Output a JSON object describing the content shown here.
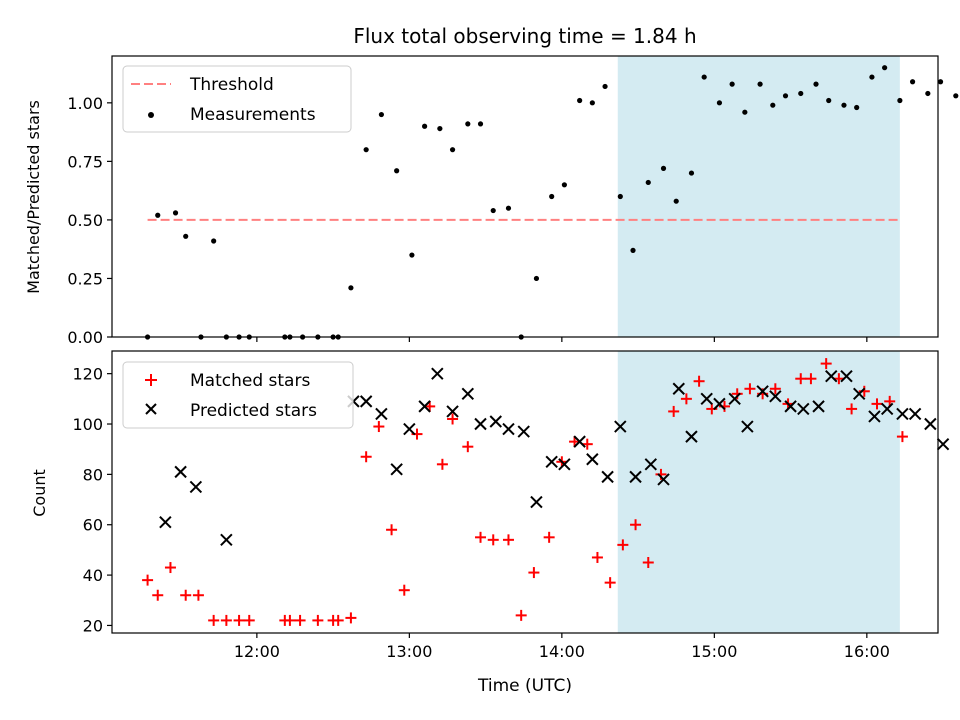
{
  "figure": {
    "title": "Flux total observing time = 1.84 h",
    "xlabel": "Time (UTC)",
    "xticks": [
      "12:00",
      "13:00",
      "14:00",
      "15:00",
      "16:00"
    ]
  },
  "chart_data": [
    {
      "type": "scatter",
      "ylabel": "Matched/Predicted stars",
      "xlim": [
        "11:03",
        "16:28"
      ],
      "ylim": [
        0,
        1.2
      ],
      "yticks": [
        "0.00",
        "0.25",
        "0.50",
        "0.75",
        "1.00"
      ],
      "shaded_interval": [
        "14:22",
        "16:13"
      ],
      "grid": false,
      "legend_position": "top-left",
      "legend": [
        {
          "key": "threshold",
          "label": "Threshold",
          "color": "#ff8080",
          "style": "dashed-line"
        },
        {
          "key": "measurements",
          "label": "Measurements",
          "color": "#000000",
          "style": "dot"
        }
      ],
      "threshold": {
        "value": 0.5,
        "x": [
          "11:17",
          "16:13"
        ]
      },
      "series": [
        {
          "name": "Measurements",
          "points": [
            [
              "11:17",
              0.0
            ],
            [
              "11:21",
              0.52
            ],
            [
              "11:28",
              0.53
            ],
            [
              "11:32",
              0.43
            ],
            [
              "11:38",
              0.0
            ],
            [
              "11:43",
              0.41
            ],
            [
              "11:48",
              0.0
            ],
            [
              "11:53",
              0.0
            ],
            [
              "11:57",
              0.0
            ],
            [
              "12:11",
              0.0
            ],
            [
              "12:13",
              0.0
            ],
            [
              "12:18",
              0.0
            ],
            [
              "12:24",
              0.0
            ],
            [
              "12:30",
              0.0
            ],
            [
              "12:32",
              0.0
            ],
            [
              "12:37",
              0.21
            ],
            [
              "12:43",
              0.8
            ],
            [
              "12:49",
              0.95
            ],
            [
              "12:55",
              0.71
            ],
            [
              "13:01",
              0.35
            ],
            [
              "13:06",
              0.9
            ],
            [
              "13:12",
              0.89
            ],
            [
              "13:17",
              0.8
            ],
            [
              "13:23",
              0.91
            ],
            [
              "13:28",
              0.91
            ],
            [
              "13:33",
              0.54
            ],
            [
              "13:39",
              0.55
            ],
            [
              "13:44",
              0.0
            ],
            [
              "13:50",
              0.25
            ],
            [
              "13:56",
              0.6
            ],
            [
              "14:01",
              0.65
            ],
            [
              "14:07",
              1.01
            ],
            [
              "14:12",
              1.0
            ],
            [
              "14:17",
              1.07
            ],
            [
              "14:23",
              0.6
            ],
            [
              "14:28",
              0.37
            ],
            [
              "14:34",
              0.66
            ],
            [
              "14:40",
              0.72
            ],
            [
              "14:45",
              0.58
            ],
            [
              "14:51",
              0.7
            ],
            [
              "14:56",
              1.11
            ],
            [
              "15:02",
              1.0
            ],
            [
              "15:07",
              1.08
            ],
            [
              "15:12",
              0.96
            ],
            [
              "15:18",
              1.08
            ],
            [
              "15:23",
              0.99
            ],
            [
              "15:28",
              1.03
            ],
            [
              "15:34",
              1.04
            ],
            [
              "15:40",
              1.08
            ],
            [
              "15:45",
              1.01
            ],
            [
              "15:51",
              0.99
            ],
            [
              "15:56",
              0.98
            ],
            [
              "16:02",
              1.11
            ],
            [
              "16:07",
              1.15
            ],
            [
              "16:13",
              1.01
            ],
            [
              "16:18",
              1.09
            ],
            [
              "16:24",
              1.04
            ],
            [
              "16:29",
              1.09
            ],
            [
              "16:35",
              1.03
            ]
          ]
        }
      ]
    },
    {
      "type": "scatter",
      "ylabel": "Count",
      "xlim": [
        "11:03",
        "16:28"
      ],
      "ylim": [
        17,
        129
      ],
      "yticks": [
        "20",
        "40",
        "60",
        "80",
        "100",
        "120"
      ],
      "shaded_interval": [
        "14:22",
        "16:13"
      ],
      "grid": false,
      "legend_position": "top-left",
      "legend": [
        {
          "key": "matched",
          "label": "Matched stars",
          "color": "#ff0000",
          "style": "plus"
        },
        {
          "key": "predicted",
          "label": "Predicted stars",
          "color": "#000000",
          "style": "x"
        }
      ],
      "series": [
        {
          "name": "Matched stars",
          "points": [
            [
              "11:17",
              38
            ],
            [
              "11:21",
              32
            ],
            [
              "11:26",
              43
            ],
            [
              "11:32",
              32
            ],
            [
              "11:37",
              32
            ],
            [
              "11:43",
              22
            ],
            [
              "11:48",
              22
            ],
            [
              "11:53",
              22
            ],
            [
              "11:57",
              22
            ],
            [
              "12:11",
              22
            ],
            [
              "12:13",
              22
            ],
            [
              "12:17",
              22
            ],
            [
              "12:24",
              22
            ],
            [
              "12:30",
              22
            ],
            [
              "12:32",
              22
            ],
            [
              "12:37",
              23
            ],
            [
              "12:43",
              87
            ],
            [
              "12:48",
              99
            ],
            [
              "12:53",
              58
            ],
            [
              "12:58",
              34
            ],
            [
              "13:03",
              96
            ],
            [
              "13:08",
              107
            ],
            [
              "13:13",
              84
            ],
            [
              "13:17",
              102
            ],
            [
              "13:23",
              91
            ],
            [
              "13:28",
              55
            ],
            [
              "13:33",
              54
            ],
            [
              "13:39",
              54
            ],
            [
              "13:44",
              24
            ],
            [
              "13:49",
              41
            ],
            [
              "13:55",
              55
            ],
            [
              "14:00",
              85
            ],
            [
              "14:05",
              93
            ],
            [
              "14:10",
              92
            ],
            [
              "14:14",
              47
            ],
            [
              "14:19",
              37
            ],
            [
              "14:24",
              52
            ],
            [
              "14:29",
              60
            ],
            [
              "14:34",
              45
            ],
            [
              "14:39",
              80
            ],
            [
              "14:44",
              105
            ],
            [
              "14:49",
              110
            ],
            [
              "14:54",
              117
            ],
            [
              "14:59",
              106
            ],
            [
              "15:04",
              107
            ],
            [
              "15:09",
              112
            ],
            [
              "15:14",
              114
            ],
            [
              "15:19",
              112
            ],
            [
              "15:24",
              114
            ],
            [
              "15:29",
              108
            ],
            [
              "15:34",
              118
            ],
            [
              "15:38",
              118
            ],
            [
              "15:44",
              124
            ],
            [
              "15:49",
              118
            ],
            [
              "15:54",
              106
            ],
            [
              "15:59",
              113
            ],
            [
              "16:04",
              108
            ],
            [
              "16:09",
              109
            ],
            [
              "16:14",
              95
            ]
          ]
        },
        {
          "name": "Predicted stars",
          "points": [
            [
              "11:24",
              61
            ],
            [
              "11:30",
              81
            ],
            [
              "11:36",
              75
            ],
            [
              "11:48",
              54
            ],
            [
              "12:38",
              109
            ],
            [
              "12:43",
              109
            ],
            [
              "12:49",
              104
            ],
            [
              "12:55",
              82
            ],
            [
              "13:00",
              98
            ],
            [
              "13:06",
              107
            ],
            [
              "13:11",
              120
            ],
            [
              "13:17",
              105
            ],
            [
              "13:23",
              112
            ],
            [
              "13:28",
              100
            ],
            [
              "13:34",
              101
            ],
            [
              "13:39",
              98
            ],
            [
              "13:45",
              97
            ],
            [
              "13:50",
              69
            ],
            [
              "13:56",
              85
            ],
            [
              "14:01",
              84
            ],
            [
              "14:07",
              93
            ],
            [
              "14:12",
              86
            ],
            [
              "14:18",
              79
            ],
            [
              "14:23",
              99
            ],
            [
              "14:29",
              79
            ],
            [
              "14:35",
              84
            ],
            [
              "14:40",
              78
            ],
            [
              "14:46",
              114
            ],
            [
              "14:51",
              95
            ],
            [
              "14:57",
              110
            ],
            [
              "15:02",
              108
            ],
            [
              "15:08",
              110
            ],
            [
              "15:13",
              99
            ],
            [
              "15:19",
              113
            ],
            [
              "15:24",
              111
            ],
            [
              "15:30",
              107
            ],
            [
              "15:35",
              106
            ],
            [
              "15:41",
              107
            ],
            [
              "15:46",
              119
            ],
            [
              "15:52",
              119
            ],
            [
              "15:57",
              112
            ],
            [
              "16:03",
              103
            ],
            [
              "16:08",
              106
            ],
            [
              "16:14",
              104
            ],
            [
              "16:19",
              104
            ],
            [
              "16:25",
              100
            ],
            [
              "16:30",
              92
            ]
          ]
        }
      ]
    }
  ]
}
